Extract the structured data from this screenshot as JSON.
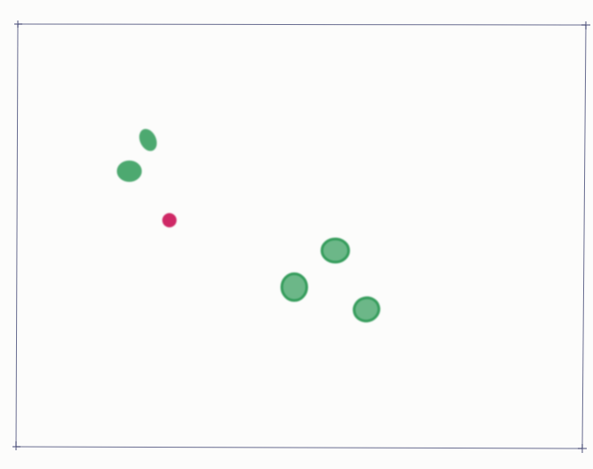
{
  "sheet": {
    "paper_color": "#fcfcfb",
    "frame_color": "#3a3f6e",
    "corner_marks": [
      "top-left",
      "top-right",
      "bottom-left",
      "bottom-right"
    ]
  },
  "dots": [
    {
      "color": "#2e9a57",
      "shape": "blob"
    },
    {
      "color": "#2e9a57",
      "shape": "blob"
    },
    {
      "color": "#cc1c5e",
      "shape": "round"
    },
    {
      "color": "#2e9a57",
      "shape": "ring"
    },
    {
      "color": "#2e9a57",
      "shape": "ring"
    },
    {
      "color": "#2e9a57",
      "shape": "ring"
    }
  ]
}
